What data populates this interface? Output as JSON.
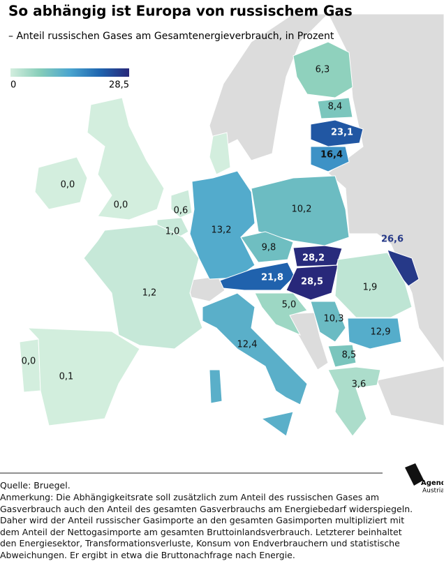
{
  "chart_data": {
    "type": "choropleth",
    "title": "So abhängig ist Europa von russischem Gas",
    "subtitle": "– Anteil russischen Gases am Gesamtenergieverbrauch, in Prozent",
    "values": [
      6.3,
      8.4,
      23.1,
      16.4,
      0.0,
      0.0,
      0.6,
      1.0,
      13.2,
      10.2,
      9.8,
      28.2,
      21.8,
      28.5,
      26.6,
      1.9,
      1.2,
      5.0,
      10.3,
      12.9,
      8.5,
      3.6,
      12.4,
      0.0,
      0.1
    ],
    "value_labels": [
      "6,3",
      "8,4",
      "23,1",
      "16,4",
      "0,0",
      "0,0",
      "0,6",
      "1,0",
      "13,2",
      "10,2",
      "9,8",
      "28,2",
      "21,8",
      "28,5",
      "26,6",
      "1,9",
      "1,2",
      "5,0",
      "10,3",
      "12,9",
      "8,5",
      "3,6",
      "12,4",
      "0,0",
      "0,1"
    ],
    "colorscale": [
      "#d3eede",
      "#86cdb9",
      "#4aa5cf",
      "#1f66b0",
      "#28287a"
    ],
    "colorticks": [
      0,
      {
        "value": 28.5,
        "label": "28,5"
      }
    ],
    "source": "Quelle: Bruegel.",
    "note": "Anmerkung: Die Abhängigkeitsrate soll zusätzlich zum Anteil des russischen Gases am Gasverbrauch auch den Anteil des gesamten Gasverbrauchs am Energiebedarf widerspiegeln. Daher wird der Anteil russischer Gasimporte an den gesamten Gasimporten multipliziert mit dem Anteil der Nettogasimporte am gesamten Bruttoinlandsverbrauch. Letzterer beinhaltet den Energiesektor, Transformationsverluste, Konsum von Endverbrauchern und statistische Abweichungen. Er ergibt in etwa die Bruttonachfrage nach Energie.",
    "logo": [
      "Agenda",
      "Austria"
    ]
  }
}
